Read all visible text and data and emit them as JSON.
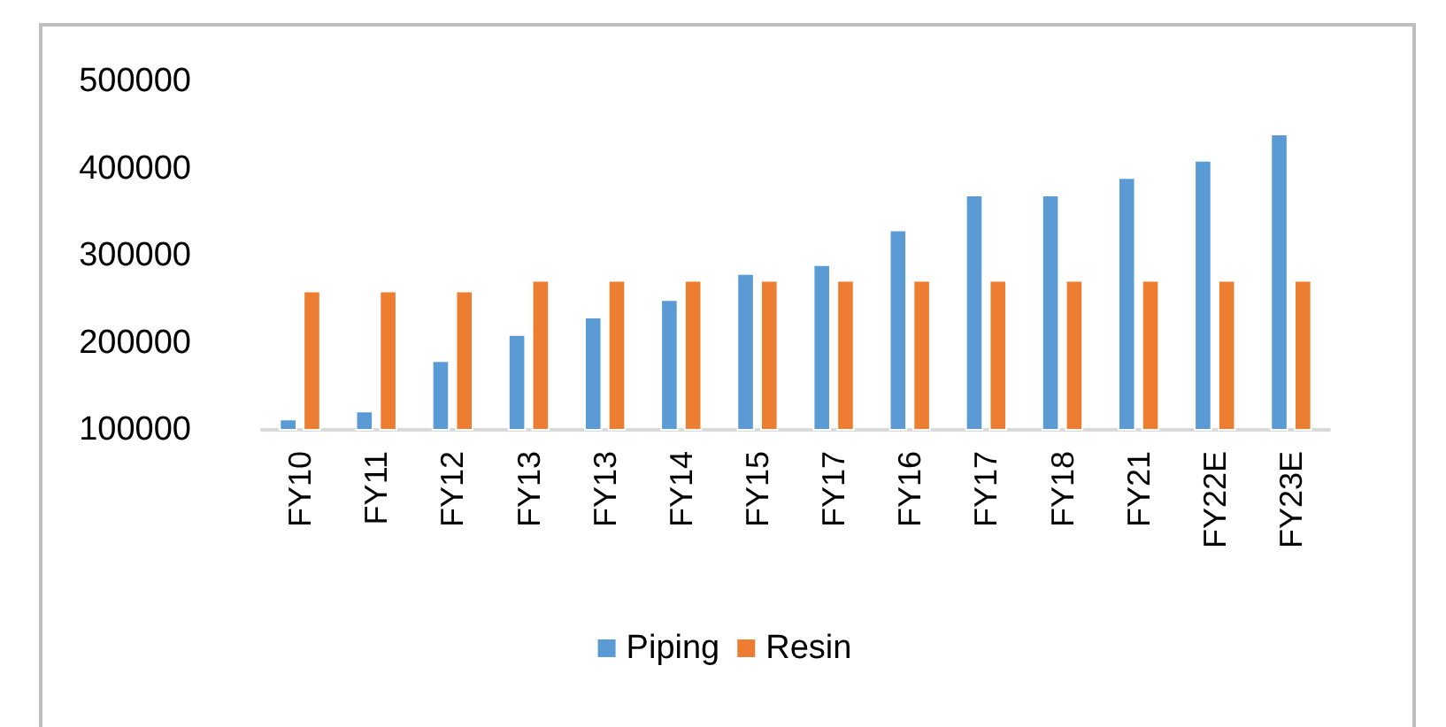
{
  "chart_data": {
    "type": "bar",
    "categories": [
      "FY10",
      "FY11",
      "FY12",
      "FY13",
      "FY13",
      "FY14",
      "FY15",
      "FY17",
      "FY16",
      "FY17",
      "FY18",
      "FY21",
      "FY22E",
      "FY23E"
    ],
    "series": [
      {
        "name": "Piping",
        "color": "#5b9bd5",
        "values": [
          113000,
          122000,
          180000,
          210000,
          230000,
          250000,
          280000,
          290000,
          330000,
          370000,
          370000,
          390000,
          410000,
          440000
        ]
      },
      {
        "name": "Resin",
        "color": "#ed7d31",
        "values": [
          260000,
          260000,
          260000,
          272000,
          272000,
          272000,
          272000,
          272000,
          272000,
          272000,
          272000,
          272000,
          272000,
          272000
        ]
      }
    ],
    "ylim": [
      100000,
      500000
    ],
    "yticks": [
      100000,
      200000,
      300000,
      400000,
      500000
    ],
    "grid": false,
    "legend": "bottom"
  }
}
